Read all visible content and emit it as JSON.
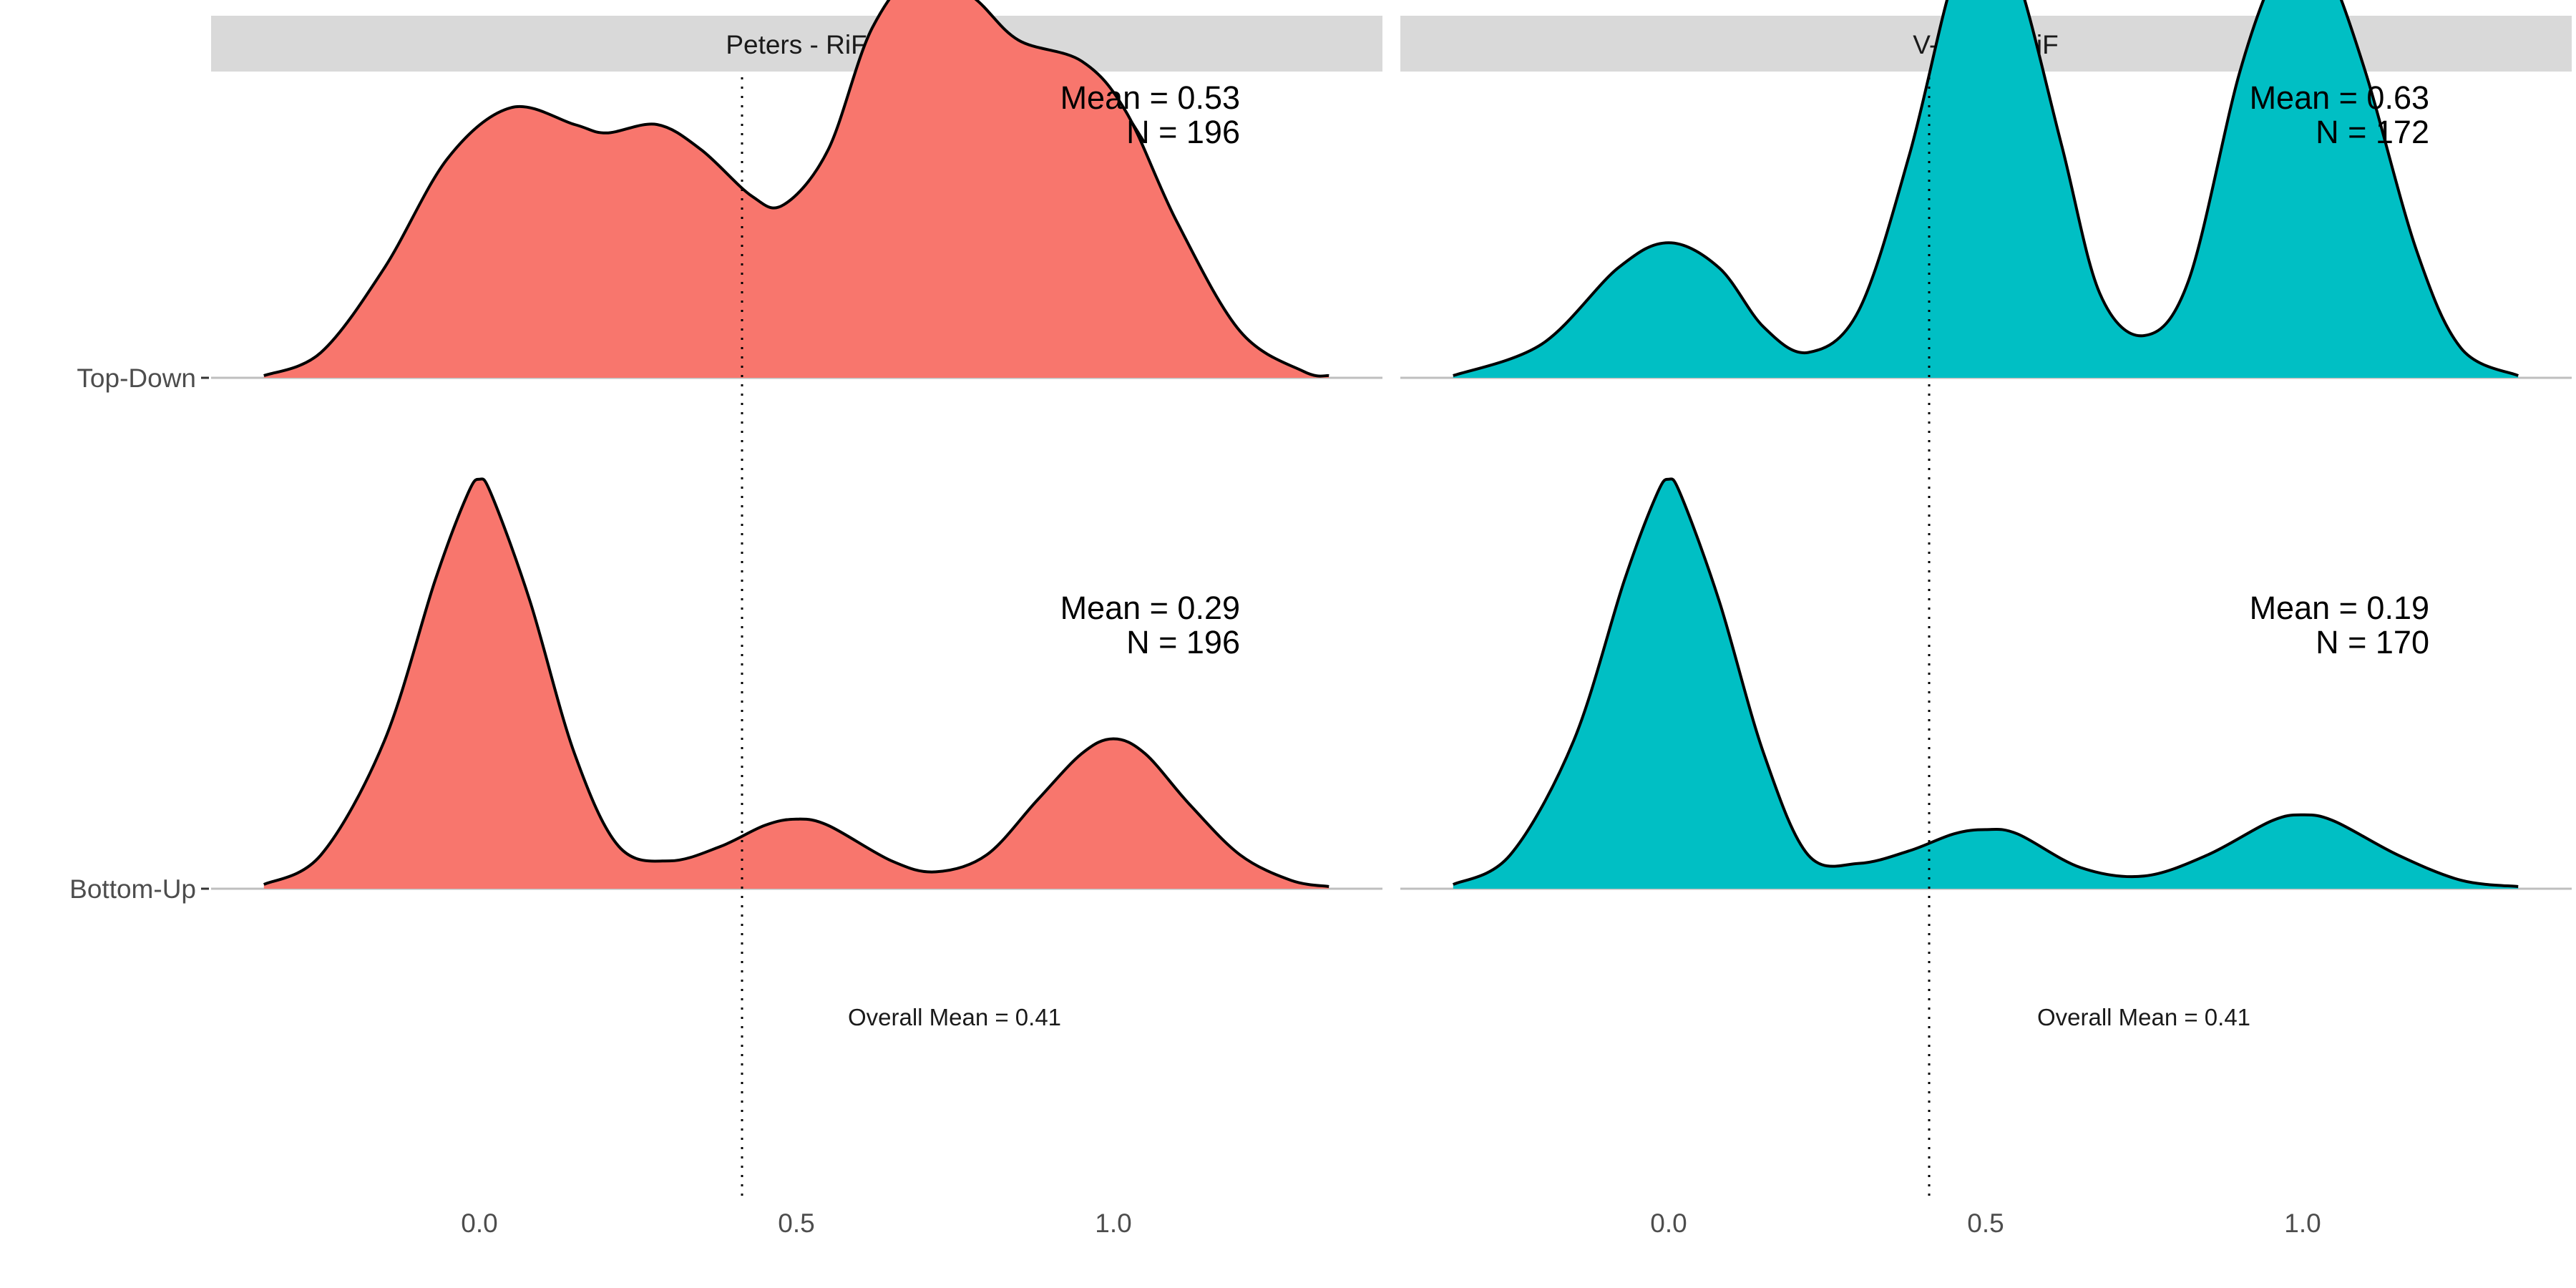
{
  "chart_data": {
    "type": "area",
    "subtype": "ridgeline-density",
    "x_range": [
      -0.35,
      1.35
    ],
    "x_ticks": [
      "0.0",
      "0.5",
      "1.0"
    ],
    "x_tick_values": [
      0.0,
      0.5,
      1.0
    ],
    "categories": [
      "Top-Down",
      "Bottom-Up"
    ],
    "reference_line": {
      "x": 0.41,
      "style": "dotted",
      "label": "Overall Mean = 0.41"
    },
    "grid": false,
    "panels": [
      {
        "title": "Peters - RiF",
        "fill_color": "#F8766D",
        "series": [
          {
            "category": "Top-Down",
            "mean_label": "Mean = 0.53",
            "n_label": "N = 196",
            "points": [
              [
                -0.34,
                0.005
              ],
              [
                -0.25,
                0.06
              ],
              [
                -0.15,
                0.26
              ],
              [
                -0.05,
                0.52
              ],
              [
                0.05,
                0.64
              ],
              [
                0.15,
                0.6
              ],
              [
                0.2,
                0.58
              ],
              [
                0.28,
                0.6
              ],
              [
                0.35,
                0.54
              ],
              [
                0.43,
                0.43
              ],
              [
                0.48,
                0.41
              ],
              [
                0.55,
                0.54
              ],
              [
                0.62,
                0.83
              ],
              [
                0.7,
                0.97
              ],
              [
                0.78,
                0.9
              ],
              [
                0.85,
                0.8
              ],
              [
                0.95,
                0.75
              ],
              [
                1.02,
                0.63
              ],
              [
                1.1,
                0.37
              ],
              [
                1.2,
                0.11
              ],
              [
                1.3,
                0.015
              ],
              [
                1.34,
                0.005
              ]
            ]
          },
          {
            "category": "Bottom-Up",
            "mean_label": "Mean = 0.29",
            "n_label": "N = 196",
            "points": [
              [
                -0.34,
                0.01
              ],
              [
                -0.25,
                0.08
              ],
              [
                -0.15,
                0.35
              ],
              [
                -0.07,
                0.73
              ],
              [
                -0.02,
                0.93
              ],
              [
                0.0,
                0.97
              ],
              [
                0.02,
                0.93
              ],
              [
                0.08,
                0.68
              ],
              [
                0.15,
                0.32
              ],
              [
                0.22,
                0.1
              ],
              [
                0.3,
                0.066
              ],
              [
                0.38,
                0.1
              ],
              [
                0.45,
                0.15
              ],
              [
                0.5,
                0.165
              ],
              [
                0.55,
                0.15
              ],
              [
                0.65,
                0.066
              ],
              [
                0.72,
                0.04
              ],
              [
                0.8,
                0.08
              ],
              [
                0.88,
                0.21
              ],
              [
                0.95,
                0.32
              ],
              [
                1.0,
                0.355
              ],
              [
                1.05,
                0.32
              ],
              [
                1.12,
                0.2
              ],
              [
                1.2,
                0.08
              ],
              [
                1.28,
                0.02
              ],
              [
                1.34,
                0.005
              ]
            ]
          }
        ]
      },
      {
        "title": "V-Dem - RiF",
        "fill_color": "#00BFC4",
        "series": [
          {
            "category": "Top-Down",
            "mean_label": "Mean = 0.63",
            "n_label": "N = 172",
            "points": [
              [
                -0.34,
                0.005
              ],
              [
                -0.2,
                0.08
              ],
              [
                -0.08,
                0.26
              ],
              [
                0.0,
                0.32
              ],
              [
                0.08,
                0.26
              ],
              [
                0.15,
                0.12
              ],
              [
                0.22,
                0.06
              ],
              [
                0.3,
                0.16
              ],
              [
                0.38,
                0.53
              ],
              [
                0.45,
                0.95
              ],
              [
                0.5,
                1.05
              ],
              [
                0.55,
                0.95
              ],
              [
                0.62,
                0.55
              ],
              [
                0.68,
                0.2
              ],
              [
                0.75,
                0.1
              ],
              [
                0.82,
                0.23
              ],
              [
                0.9,
                0.72
              ],
              [
                0.96,
                0.97
              ],
              [
                1.0,
                1.02
              ],
              [
                1.04,
                0.97
              ],
              [
                1.1,
                0.72
              ],
              [
                1.18,
                0.3
              ],
              [
                1.25,
                0.07
              ],
              [
                1.34,
                0.005
              ]
            ]
          },
          {
            "category": "Bottom-Up",
            "mean_label": "Mean = 0.19",
            "n_label": "N = 170",
            "points": [
              [
                -0.34,
                0.01
              ],
              [
                -0.25,
                0.08
              ],
              [
                -0.15,
                0.35
              ],
              [
                -0.07,
                0.73
              ],
              [
                -0.02,
                0.93
              ],
              [
                0.0,
                0.97
              ],
              [
                0.02,
                0.93
              ],
              [
                0.08,
                0.68
              ],
              [
                0.15,
                0.32
              ],
              [
                0.22,
                0.08
              ],
              [
                0.3,
                0.06
              ],
              [
                0.38,
                0.09
              ],
              [
                0.45,
                0.13
              ],
              [
                0.5,
                0.14
              ],
              [
                0.55,
                0.13
              ],
              [
                0.65,
                0.05
              ],
              [
                0.75,
                0.03
              ],
              [
                0.85,
                0.08
              ],
              [
                0.95,
                0.16
              ],
              [
                1.0,
                0.175
              ],
              [
                1.05,
                0.16
              ],
              [
                1.15,
                0.08
              ],
              [
                1.25,
                0.02
              ],
              [
                1.34,
                0.005
              ]
            ]
          }
        ]
      }
    ]
  }
}
